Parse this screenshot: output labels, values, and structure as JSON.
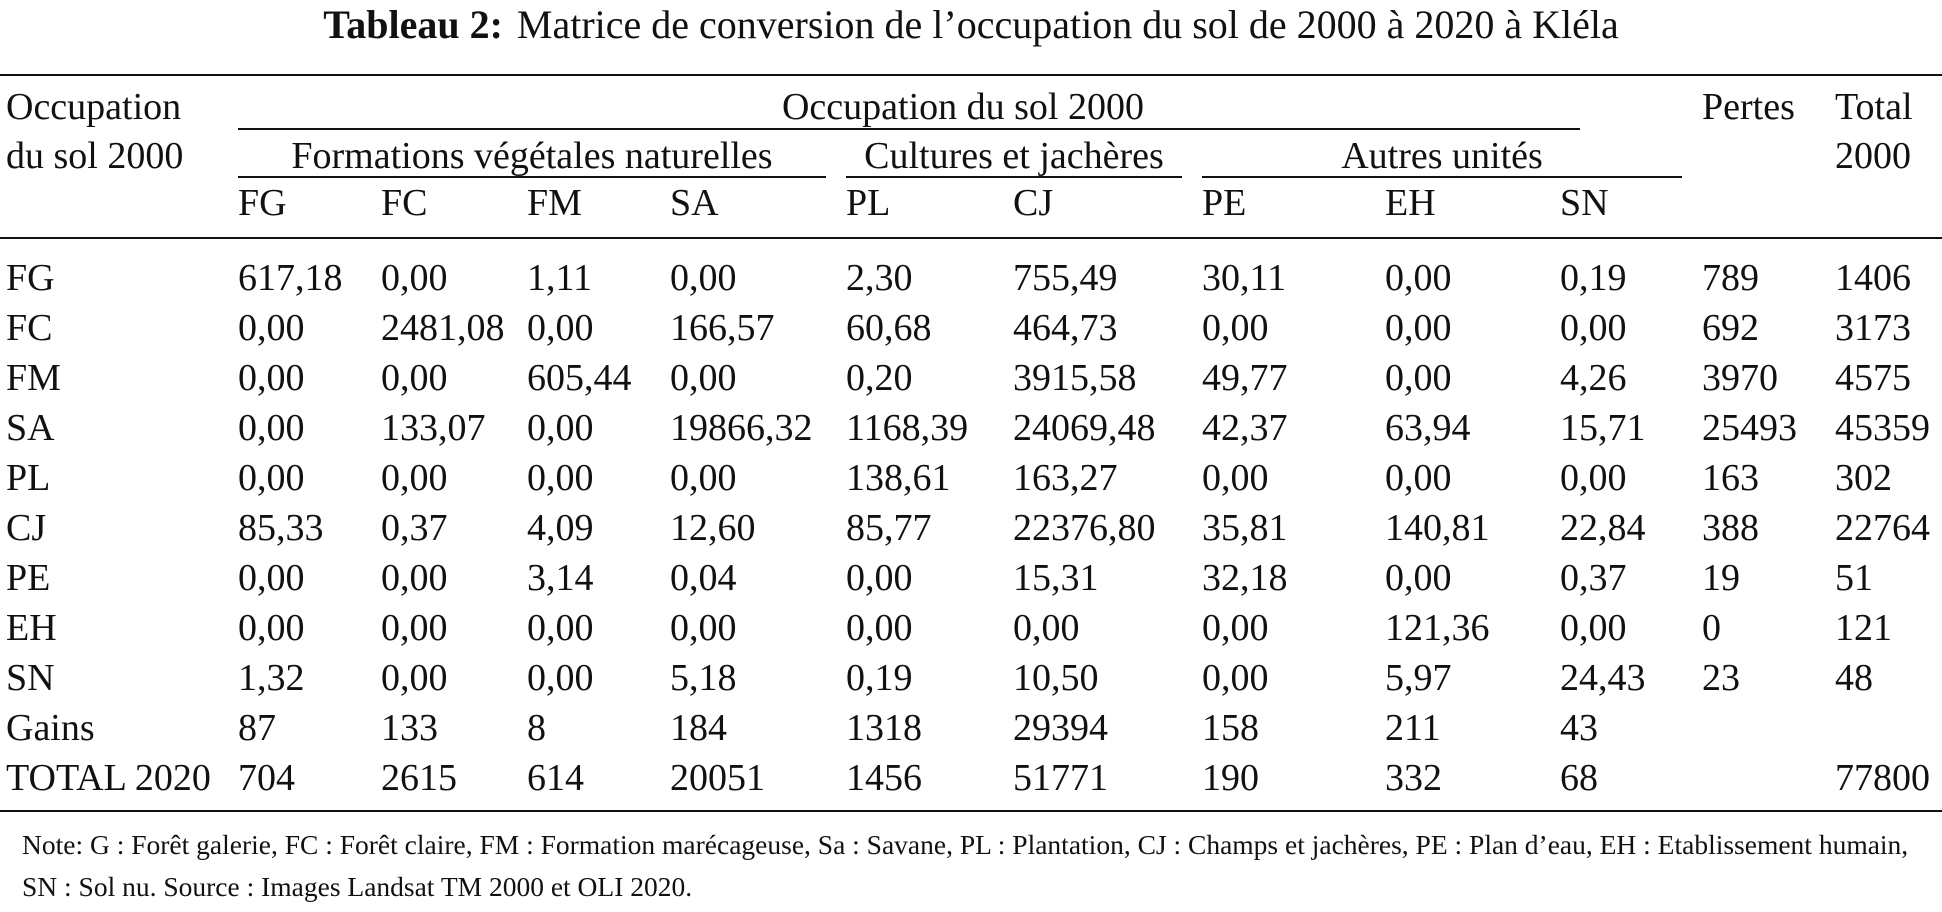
{
  "title": {
    "label": "Tableau 2:",
    "text": "Matrice de conversion de l’occupation du sol de 2000 à 2020 à Kléla"
  },
  "header": {
    "row_header_line1": "Occupation",
    "row_header_line2": "du sol 2000",
    "span_title": "Occupation du sol 2000",
    "groups": [
      "Formations végétales naturelles",
      "Cultures et jachères",
      "Autres unités"
    ],
    "columns": [
      "FG",
      "FC",
      "FM",
      "SA",
      "PL",
      "CJ",
      "PE",
      "EH",
      "SN"
    ],
    "pertes": "Pertes",
    "total_line1": "Total",
    "total_line2": "2000"
  },
  "rows": [
    {
      "label": "FG",
      "values": [
        "617,18",
        "0,00",
        "1,11",
        "0,00",
        "2,30",
        "755,49",
        "30,11",
        "0,00",
        "0,19"
      ],
      "pertes": "789",
      "total": "1406"
    },
    {
      "label": "FC",
      "values": [
        "0,00",
        "2481,08",
        "0,00",
        "166,57",
        "60,68",
        "464,73",
        "0,00",
        "0,00",
        "0,00"
      ],
      "pertes": "692",
      "total": "3173"
    },
    {
      "label": "FM",
      "values": [
        "0,00",
        "0,00",
        "605,44",
        "0,00",
        "0,20",
        "3915,58",
        "49,77",
        "0,00",
        "4,26"
      ],
      "pertes": "3970",
      "total": "4575"
    },
    {
      "label": "SA",
      "values": [
        "0,00",
        "133,07",
        "0,00",
        "19866,32",
        "1168,39",
        "24069,48",
        "42,37",
        "63,94",
        "15,71"
      ],
      "pertes": "25493",
      "total": "45359"
    },
    {
      "label": "PL",
      "values": [
        "0,00",
        "0,00",
        "0,00",
        "0,00",
        "138,61",
        "163,27",
        "0,00",
        "0,00",
        "0,00"
      ],
      "pertes": "163",
      "total": "302"
    },
    {
      "label": "CJ",
      "values": [
        "85,33",
        "0,37",
        "4,09",
        "12,60",
        "85,77",
        "22376,80",
        "35,81",
        "140,81",
        "22,84"
      ],
      "pertes": "388",
      "total": "22764"
    },
    {
      "label": "PE",
      "values": [
        "0,00",
        "0,00",
        "3,14",
        "0,04",
        "0,00",
        "15,31",
        "32,18",
        "0,00",
        "0,37"
      ],
      "pertes": "19",
      "total": "51"
    },
    {
      "label": "EH",
      "values": [
        "0,00",
        "0,00",
        "0,00",
        "0,00",
        "0,00",
        "0,00",
        "0,00",
        "121,36",
        "0,00"
      ],
      "pertes": "0",
      "total": "121"
    },
    {
      "label": "SN",
      "values": [
        "1,32",
        "0,00",
        "0,00",
        "5,18",
        "0,19",
        "10,50",
        "0,00",
        "5,97",
        "24,43"
      ],
      "pertes": "23",
      "total": "48"
    },
    {
      "label": "Gains",
      "values": [
        "87",
        "133",
        "8",
        "184",
        "1318",
        "29394",
        "158",
        "211",
        "43"
      ],
      "pertes": "",
      "total": ""
    },
    {
      "label": "TOTAL 2020",
      "values": [
        "704",
        "2615",
        "614",
        "20051",
        "1456",
        "51771",
        "190",
        "332",
        "68"
      ],
      "pertes": "",
      "total": "77800"
    }
  ],
  "note": "Note: G : Forêt galerie, FC : Forêt claire, FM : Formation marécageuse, Sa : Savane, PL : Plantation, CJ : Champs et jachères, PE : Plan d’eau, EH : Etablissement humain, SN : Sol nu. Source : Images Landsat TM 2000 et OLI 2020."
}
